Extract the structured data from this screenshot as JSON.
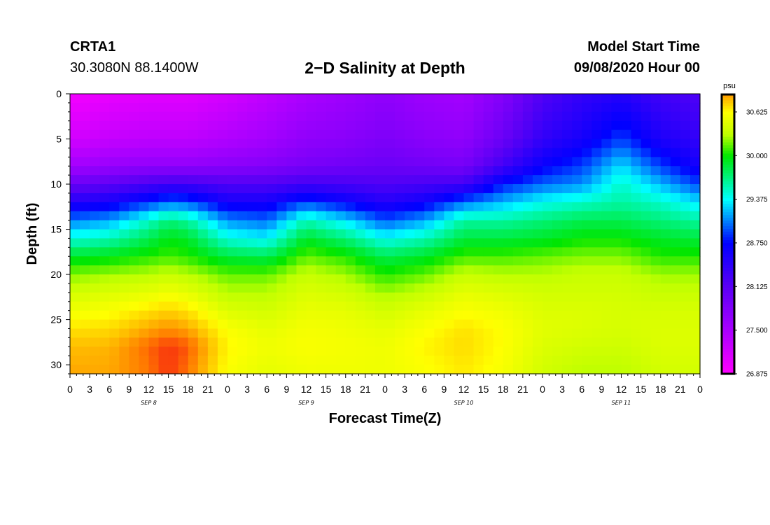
{
  "header": {
    "station_id": "CRTA1",
    "coords": "30.3080N 88.1400W",
    "title": "2−D Salinity at Depth",
    "start_label": "Model Start Time",
    "start_value": "09/08/2020 Hour 00"
  },
  "chart_data": {
    "type": "heatmap",
    "title": "2−D Salinity at Depth",
    "xlabel": "Forecast Time(Z)",
    "ylabel": "Depth (ft)",
    "x_range_hours": [
      0,
      96
    ],
    "x_tick_hours": [
      0,
      3,
      6,
      9,
      12,
      15,
      18,
      21,
      24,
      27,
      30,
      33,
      36,
      39,
      42,
      45,
      48,
      51,
      54,
      57,
      60,
      63,
      66,
      69,
      72,
      75,
      78,
      81,
      84,
      87,
      90,
      93,
      96
    ],
    "x_tick_labels": [
      "0",
      "3",
      "6",
      "9",
      "12",
      "15",
      "18",
      "21",
      "0",
      "3",
      "6",
      "9",
      "12",
      "15",
      "18",
      "21",
      "0",
      "3",
      "6",
      "9",
      "12",
      "15",
      "18",
      "21",
      "0",
      "3",
      "6",
      "9",
      "12",
      "15",
      "18",
      "21",
      "0"
    ],
    "day_labels": [
      {
        "hour": 12,
        "label": "SEP 8"
      },
      {
        "hour": 36,
        "label": "SEP 9"
      },
      {
        "hour": 60,
        "label": "SEP 10"
      },
      {
        "hour": 84,
        "label": "SEP 11"
      }
    ],
    "y_range_ft": [
      0,
      31
    ],
    "y_ticks": [
      0,
      5,
      10,
      15,
      20,
      25,
      30
    ],
    "y_tick_labels": [
      "0",
      "5",
      "10",
      "15",
      "20",
      "25",
      "30"
    ],
    "colorbar": {
      "unit": "psu",
      "min": 26.875,
      "max": 30.875,
      "ticks": [
        26.875,
        27.5,
        28.125,
        28.75,
        29.375,
        30.0,
        30.625
      ],
      "tick_labels": [
        "26.875",
        "27.500",
        "28.125",
        "28.750",
        "29.375",
        "30.000",
        "30.625"
      ]
    },
    "grid_time_hours": [
      0,
      6,
      12,
      15,
      18,
      24,
      30,
      36,
      42,
      48,
      54,
      60,
      66,
      72,
      78,
      84,
      90,
      96
    ],
    "grid_depth_ft": [
      0,
      5,
      8,
      10,
      12,
      14,
      16,
      18,
      20,
      22,
      24,
      26,
      28,
      31
    ],
    "salinity_psu": [
      [
        26.95,
        27.2,
        27.55,
        28.0,
        28.5,
        29.05,
        29.45,
        29.9,
        30.2,
        30.4,
        30.55,
        30.7,
        30.8,
        30.85
      ],
      [
        27.05,
        27.3,
        27.65,
        28.1,
        28.6,
        29.15,
        29.55,
        29.95,
        30.25,
        30.45,
        30.6,
        30.72,
        30.82,
        30.85
      ],
      [
        27.1,
        27.35,
        27.7,
        28.25,
        28.85,
        29.5,
        29.8,
        30.05,
        30.3,
        30.5,
        30.7,
        30.85,
        30.98,
        30.95
      ],
      [
        27.1,
        27.35,
        27.7,
        28.3,
        29.0,
        29.7,
        29.95,
        30.1,
        30.35,
        30.55,
        30.75,
        30.9,
        31.05,
        31.05
      ],
      [
        27.1,
        27.35,
        27.7,
        28.3,
        28.95,
        29.6,
        29.9,
        30.05,
        30.3,
        30.5,
        30.7,
        30.85,
        31.0,
        30.95
      ],
      [
        27.2,
        27.45,
        27.75,
        28.2,
        28.6,
        29.1,
        29.45,
        29.85,
        30.15,
        30.3,
        30.45,
        30.6,
        30.65,
        30.6
      ],
      [
        27.35,
        27.55,
        27.8,
        28.2,
        28.6,
        29.0,
        29.35,
        29.8,
        30.15,
        30.3,
        30.4,
        30.5,
        30.55,
        30.5
      ],
      [
        27.5,
        27.7,
        27.9,
        28.3,
        28.9,
        29.55,
        29.9,
        30.15,
        30.35,
        30.45,
        30.52,
        30.58,
        30.6,
        30.55
      ],
      [
        27.6,
        27.75,
        27.95,
        28.25,
        28.7,
        29.3,
        29.7,
        30.05,
        30.25,
        30.4,
        30.5,
        30.55,
        30.58,
        30.55
      ],
      [
        27.7,
        27.85,
        28.0,
        28.2,
        28.5,
        28.95,
        29.4,
        29.8,
        30.05,
        30.25,
        30.4,
        30.5,
        30.55,
        30.55
      ],
      [
        27.6,
        27.75,
        27.95,
        28.25,
        28.65,
        29.15,
        29.55,
        29.9,
        30.15,
        30.35,
        30.5,
        30.6,
        30.65,
        30.6
      ],
      [
        27.55,
        27.7,
        27.9,
        28.3,
        29.0,
        29.6,
        29.85,
        30.1,
        30.35,
        30.5,
        30.6,
        30.7,
        30.72,
        30.68
      ],
      [
        27.8,
        28.0,
        28.3,
        28.8,
        29.2,
        29.6,
        29.85,
        30.1,
        30.3,
        30.45,
        30.55,
        30.62,
        30.62,
        30.58
      ],
      [
        28.2,
        28.4,
        28.7,
        29.0,
        29.4,
        29.7,
        29.9,
        30.15,
        30.3,
        30.4,
        30.45,
        30.48,
        30.45,
        30.4
      ],
      [
        28.4,
        28.6,
        28.9,
        29.1,
        29.5,
        29.8,
        30.0,
        30.2,
        30.35,
        30.4,
        30.45,
        30.45,
        30.4,
        30.3
      ],
      [
        28.5,
        28.9,
        29.3,
        29.5,
        29.6,
        29.8,
        30.0,
        30.2,
        30.35,
        30.4,
        30.42,
        30.42,
        30.38,
        30.3
      ],
      [
        28.3,
        28.55,
        28.9,
        29.2,
        29.5,
        29.7,
        29.9,
        30.05,
        30.25,
        30.35,
        30.42,
        30.45,
        30.45,
        30.4
      ],
      [
        28.2,
        28.4,
        28.6,
        28.9,
        29.3,
        29.6,
        29.85,
        30.05,
        30.25,
        30.35,
        30.42,
        30.45,
        30.45,
        30.4
      ]
    ]
  }
}
